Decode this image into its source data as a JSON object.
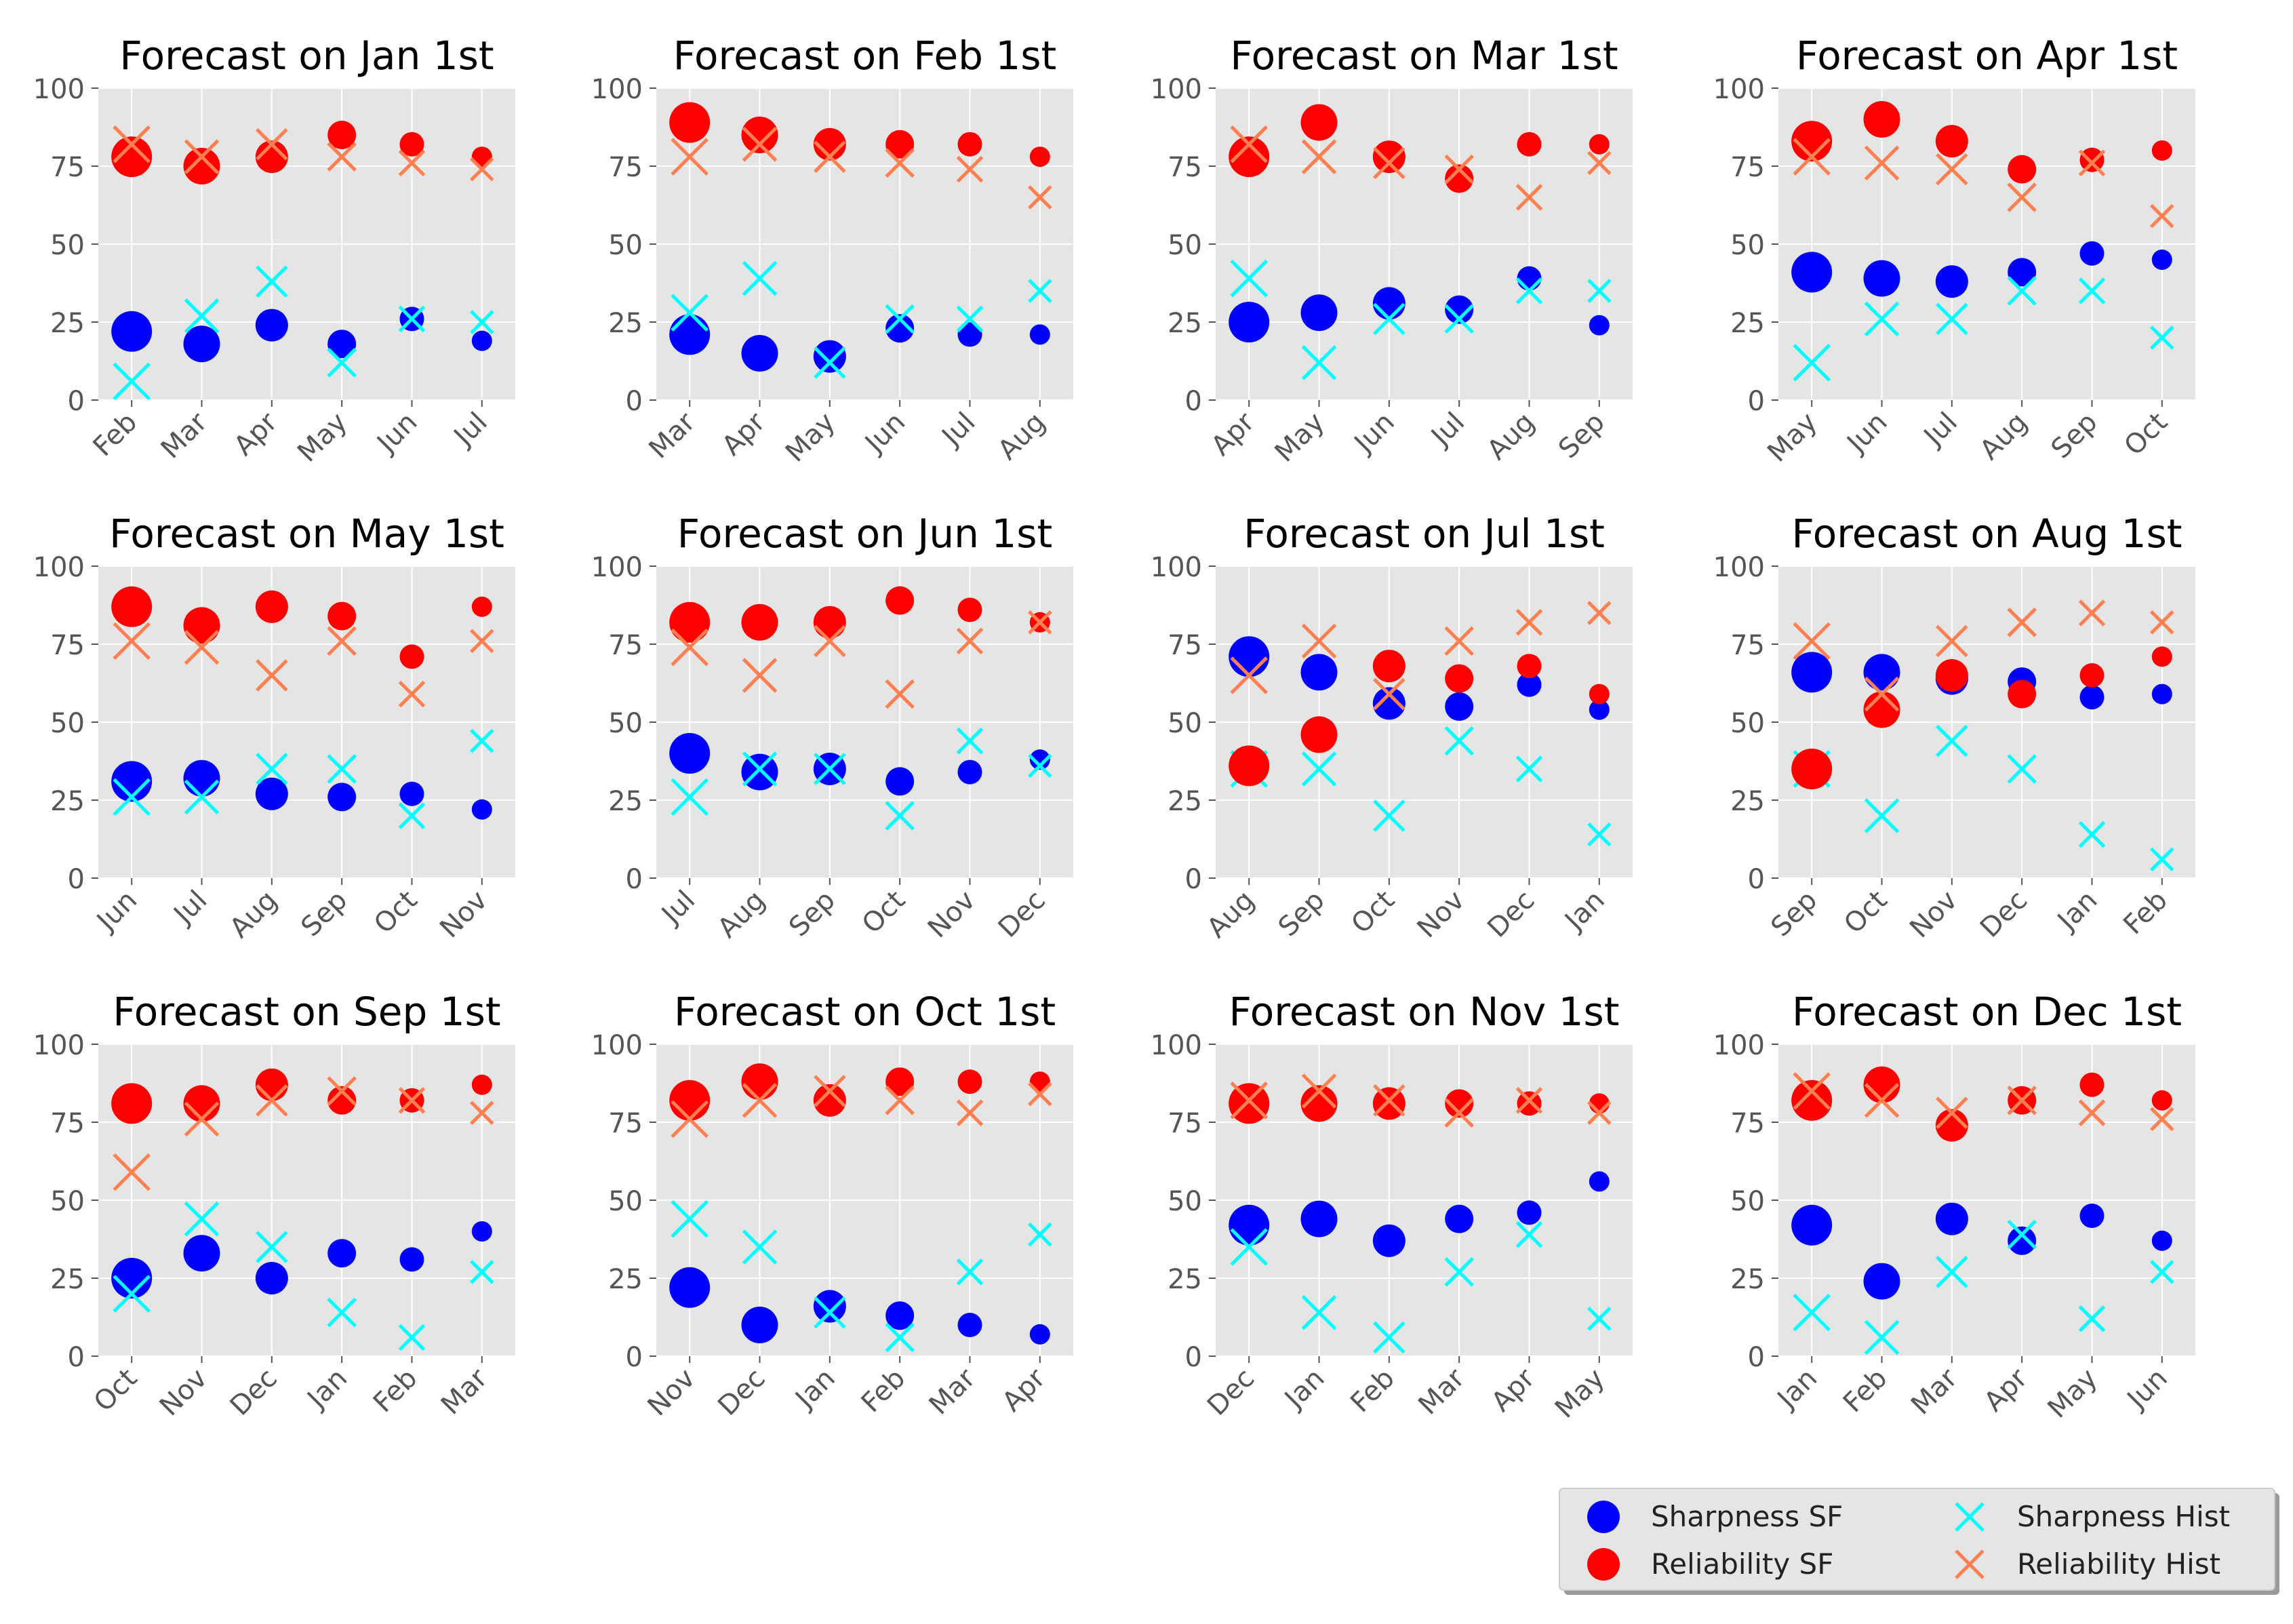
{
  "colors": {
    "panel_bg": "#e5e5e5",
    "grid": "#ffffff",
    "tick_text": "#555555",
    "title_text": "#000000",
    "sharpness_sf": "#0000ff",
    "reliability_sf": "#ff0000",
    "sharpness_hist": "#00ffff",
    "reliability_hist": "#ff7f50"
  },
  "chart_data": {
    "type": "scatter",
    "layout": {
      "rows": 3,
      "cols": 4
    },
    "ylim": [
      0,
      100
    ],
    "yticks": [
      0,
      25,
      50,
      75,
      100
    ],
    "grid": true,
    "xlabel": "",
    "ylabel": "",
    "marker_size_note": "marker size decreases with lead time",
    "legend": {
      "position": "bottom-right",
      "entries": [
        {
          "key": "sharpness_sf",
          "label": "Sharpness SF",
          "marker": "circle"
        },
        {
          "key": "sharpness_hist",
          "label": "Sharpness Hist",
          "marker": "x"
        },
        {
          "key": "reliability_sf",
          "label": "Reliability SF",
          "marker": "circle"
        },
        {
          "key": "reliability_hist",
          "label": "Reliability Hist",
          "marker": "x"
        }
      ]
    },
    "panels": [
      {
        "title": "Forecast on Jan 1st",
        "categories": [
          "Feb",
          "Mar",
          "Apr",
          "May",
          "Jun",
          "Jul"
        ],
        "sharpness_sf": [
          22,
          18,
          24,
          18,
          26,
          19
        ],
        "sharpness_hist": [
          6,
          27,
          38,
          12,
          26,
          25
        ],
        "reliability_sf": [
          78,
          75,
          78,
          85,
          82,
          78
        ],
        "reliability_hist": [
          82,
          78,
          82,
          78,
          76,
          74
        ]
      },
      {
        "title": "Forecast on Feb 1st",
        "categories": [
          "Mar",
          "Apr",
          "May",
          "Jun",
          "Jul",
          "Aug"
        ],
        "sharpness_sf": [
          21,
          15,
          14,
          23,
          21,
          21
        ],
        "sharpness_hist": [
          28,
          39,
          12,
          26,
          26,
          35
        ],
        "reliability_sf": [
          89,
          85,
          82,
          82,
          82,
          78
        ],
        "reliability_hist": [
          78,
          82,
          78,
          76,
          74,
          65
        ]
      },
      {
        "title": "Forecast on Mar 1st",
        "categories": [
          "Apr",
          "May",
          "Jun",
          "Jul",
          "Aug",
          "Sep"
        ],
        "sharpness_sf": [
          25,
          28,
          31,
          29,
          39,
          24
        ],
        "sharpness_hist": [
          39,
          12,
          26,
          26,
          35,
          35
        ],
        "reliability_sf": [
          78,
          89,
          78,
          71,
          82,
          82
        ],
        "reliability_hist": [
          82,
          78,
          76,
          74,
          65,
          76
        ]
      },
      {
        "title": "Forecast on Apr 1st",
        "categories": [
          "May",
          "Jun",
          "Jul",
          "Aug",
          "Sep",
          "Oct"
        ],
        "sharpness_sf": [
          41,
          39,
          38,
          41,
          47,
          45
        ],
        "sharpness_hist": [
          12,
          26,
          26,
          35,
          35,
          20
        ],
        "reliability_sf": [
          83,
          90,
          83,
          74,
          77,
          80
        ],
        "reliability_hist": [
          78,
          76,
          74,
          65,
          76,
          59
        ]
      },
      {
        "title": "Forecast on May 1st",
        "categories": [
          "Jun",
          "Jul",
          "Aug",
          "Sep",
          "Oct",
          "Nov"
        ],
        "sharpness_sf": [
          31,
          32,
          27,
          26,
          27,
          22
        ],
        "sharpness_hist": [
          26,
          26,
          35,
          35,
          20,
          44
        ],
        "reliability_sf": [
          87,
          81,
          87,
          84,
          71,
          87
        ],
        "reliability_hist": [
          76,
          74,
          65,
          76,
          59,
          76
        ]
      },
      {
        "title": "Forecast on Jun 1st",
        "categories": [
          "Jul",
          "Aug",
          "Sep",
          "Oct",
          "Nov",
          "Dec"
        ],
        "sharpness_sf": [
          40,
          34,
          35,
          31,
          34,
          38
        ],
        "sharpness_hist": [
          26,
          35,
          35,
          20,
          44,
          36
        ],
        "reliability_sf": [
          82,
          82,
          82,
          89,
          86,
          82
        ],
        "reliability_hist": [
          74,
          65,
          76,
          59,
          76,
          82
        ]
      },
      {
        "title": "Forecast on Jul 1st",
        "categories": [
          "Aug",
          "Sep",
          "Oct",
          "Nov",
          "Dec",
          "Jan"
        ],
        "sharpness_sf": [
          71,
          66,
          56,
          55,
          62,
          54
        ],
        "sharpness_hist": [
          35,
          35,
          20,
          44,
          35,
          14
        ],
        "reliability_sf": [
          36,
          46,
          68,
          64,
          68,
          59
        ],
        "reliability_hist": [
          65,
          76,
          59,
          76,
          82,
          85
        ]
      },
      {
        "title": "Forecast on Aug 1st",
        "categories": [
          "Sep",
          "Oct",
          "Nov",
          "Dec",
          "Jan",
          "Feb"
        ],
        "sharpness_sf": [
          66,
          66,
          64,
          63,
          58,
          59
        ],
        "sharpness_hist": [
          35,
          20,
          44,
          35,
          14,
          6
        ],
        "reliability_sf": [
          35,
          54,
          65,
          59,
          65,
          71
        ],
        "reliability_hist": [
          76,
          59,
          76,
          82,
          85,
          82
        ]
      },
      {
        "title": "Forecast on Sep 1st",
        "categories": [
          "Oct",
          "Nov",
          "Dec",
          "Jan",
          "Feb",
          "Mar"
        ],
        "sharpness_sf": [
          25,
          33,
          25,
          33,
          31,
          40
        ],
        "sharpness_hist": [
          20,
          44,
          35,
          14,
          6,
          27
        ],
        "reliability_sf": [
          81,
          81,
          87,
          82,
          82,
          87
        ],
        "reliability_hist": [
          59,
          76,
          82,
          85,
          82,
          78
        ]
      },
      {
        "title": "Forecast on Oct 1st",
        "categories": [
          "Nov",
          "Dec",
          "Jan",
          "Feb",
          "Mar",
          "Apr"
        ],
        "sharpness_sf": [
          22,
          10,
          16,
          13,
          10,
          7
        ],
        "sharpness_hist": [
          44,
          35,
          14,
          6,
          27,
          39
        ],
        "reliability_sf": [
          82,
          88,
          82,
          88,
          88,
          88
        ],
        "reliability_hist": [
          76,
          82,
          85,
          82,
          78,
          84
        ]
      },
      {
        "title": "Forecast on Nov 1st",
        "categories": [
          "Dec",
          "Jan",
          "Feb",
          "Mar",
          "Apr",
          "May"
        ],
        "sharpness_sf": [
          42,
          44,
          37,
          44,
          46,
          56
        ],
        "sharpness_hist": [
          35,
          14,
          6,
          27,
          39,
          12
        ],
        "reliability_sf": [
          81,
          81,
          81,
          81,
          81,
          81
        ],
        "reliability_hist": [
          82,
          85,
          82,
          78,
          82,
          78
        ]
      },
      {
        "title": "Forecast on Dec 1st",
        "categories": [
          "Jan",
          "Feb",
          "Mar",
          "Apr",
          "May",
          "Jun"
        ],
        "sharpness_sf": [
          42,
          24,
          44,
          37,
          45,
          37
        ],
        "sharpness_hist": [
          14,
          6,
          27,
          39,
          12,
          27
        ],
        "reliability_sf": [
          82,
          87,
          74,
          82,
          87,
          82
        ],
        "reliability_hist": [
          85,
          82,
          78,
          82,
          78,
          76
        ]
      }
    ]
  }
}
